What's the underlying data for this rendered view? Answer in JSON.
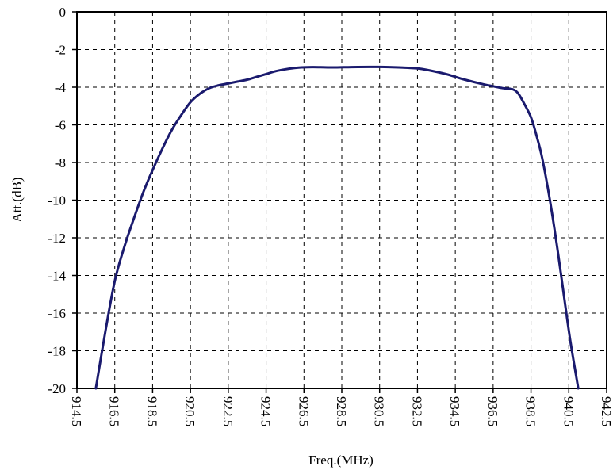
{
  "chart_data": {
    "type": "line",
    "title": "",
    "xlabel": "Freq.(MHz)",
    "ylabel": "Att.(dB)",
    "xlim": [
      914.5,
      942.5
    ],
    "ylim": [
      -20,
      0
    ],
    "x_ticks": [
      914.5,
      916.5,
      918.5,
      920.5,
      922.5,
      924.5,
      926.5,
      928.5,
      930.5,
      932.5,
      934.5,
      936.5,
      938.5,
      940.5,
      942.5
    ],
    "x_tick_labels": [
      "914.5",
      "916.5",
      "918.5",
      "920.5",
      "922.5",
      "924.5",
      "926.5",
      "928.5",
      "930.5",
      "932.5",
      "934.5",
      "936.5",
      "938.5",
      "940.5",
      "942.5"
    ],
    "y_ticks": [
      0,
      -2,
      -4,
      -6,
      -8,
      -10,
      -12,
      -14,
      -16,
      -18,
      -20
    ],
    "y_tick_labels": [
      "0",
      "-2",
      "-4",
      "-6",
      "-8",
      "-10",
      "-12",
      "-14",
      "-16",
      "-18",
      "-20"
    ],
    "grid": true,
    "series": [
      {
        "color": "#1a1a6e",
        "x": [
          915.5,
          916.0,
          916.5,
          917.0,
          917.5,
          918.0,
          918.5,
          919.0,
          919.5,
          920.0,
          920.5,
          921.0,
          921.5,
          922.0,
          922.5,
          923.0,
          923.5,
          924.0,
          924.5,
          925.0,
          925.5,
          926.0,
          926.5,
          927.0,
          928.0,
          929.0,
          930.0,
          930.5,
          931.0,
          932.0,
          932.5,
          933.0,
          934.0,
          934.5,
          935.0,
          936.0,
          936.5,
          937.0,
          937.5,
          937.8,
          938.1,
          938.5,
          938.8,
          939.1,
          939.5,
          939.9,
          940.3,
          940.6,
          941.0
        ],
        "y": [
          -20.0,
          -17.0,
          -14.3,
          -12.5,
          -11.0,
          -9.6,
          -8.4,
          -7.3,
          -6.3,
          -5.5,
          -4.8,
          -4.35,
          -4.05,
          -3.9,
          -3.8,
          -3.7,
          -3.6,
          -3.45,
          -3.3,
          -3.15,
          -3.05,
          -2.98,
          -2.94,
          -2.93,
          -2.95,
          -2.93,
          -2.92,
          -2.92,
          -2.93,
          -2.97,
          -3.0,
          -3.08,
          -3.3,
          -3.45,
          -3.6,
          -3.85,
          -3.95,
          -4.05,
          -4.1,
          -4.3,
          -4.8,
          -5.6,
          -6.6,
          -7.8,
          -10.0,
          -12.6,
          -15.5,
          -17.6,
          -20.0
        ]
      }
    ]
  }
}
